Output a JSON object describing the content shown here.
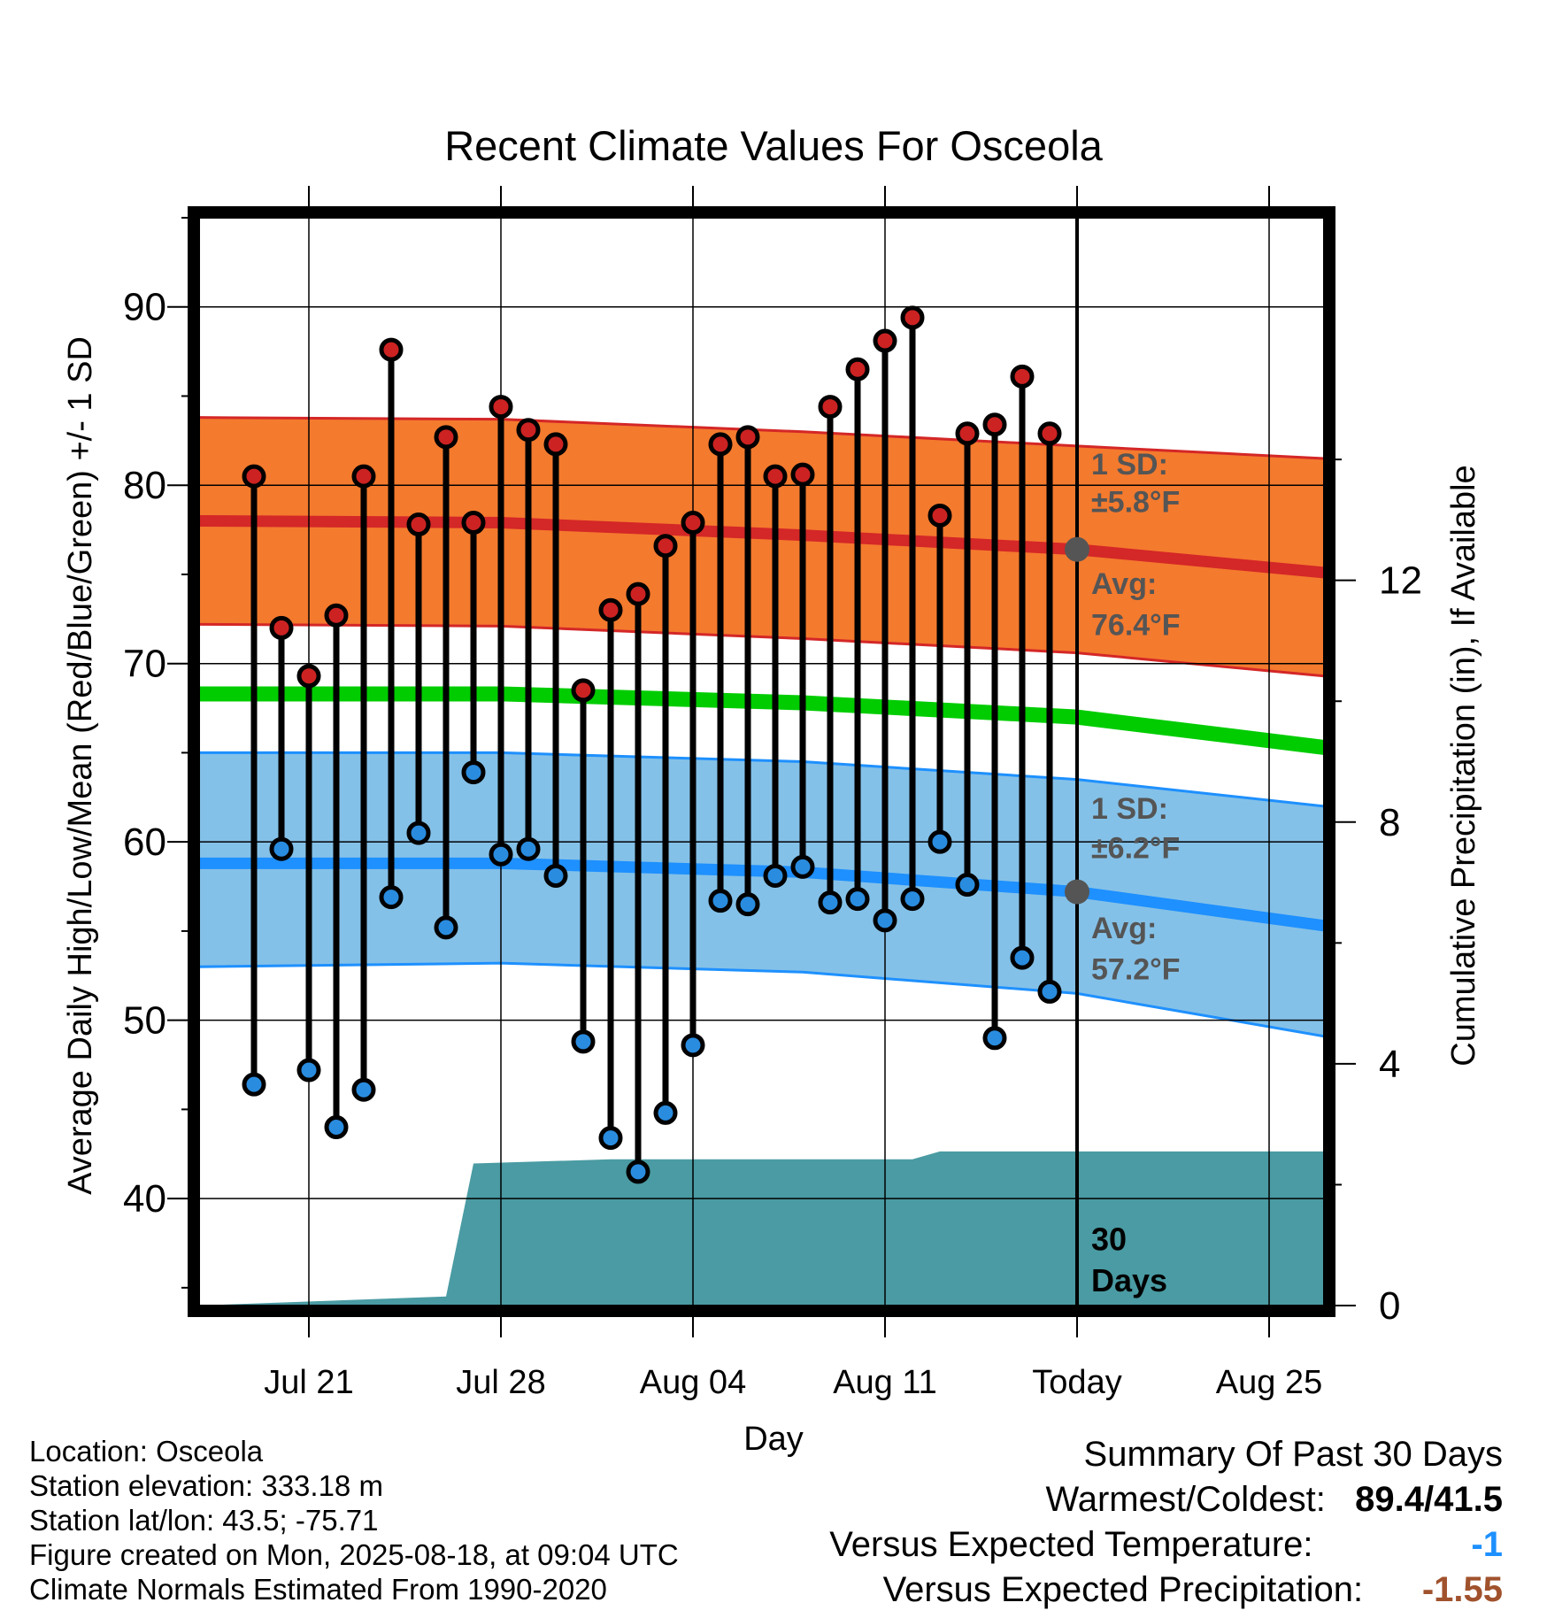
{
  "chart_data": {
    "type": "line",
    "title": "Recent Climate Values For Osceola",
    "xlabel": "Day",
    "ylabel": "Average Daily High/Low/Mean (Red/Blue/Green) +/- 1 SD",
    "y2label": "Cumulative Precipitation (in), If Available",
    "ylim": [
      34,
      95
    ],
    "y2lim": [
      0,
      18
    ],
    "xlim": [
      "2025-07-17",
      "2025-08-27"
    ],
    "yticks": [
      40,
      50,
      60,
      70,
      80,
      90
    ],
    "y2ticks": [
      0,
      4,
      8,
      12
    ],
    "x_tick_dates": [
      "2025-07-21",
      "2025-07-28",
      "2025-08-04",
      "2025-08-11",
      "2025-08-18",
      "2025-08-25"
    ],
    "x_tick_labels": [
      "Jul 21",
      "Jul 28",
      "Aug 04",
      "Aug 11",
      "Today",
      "Aug 25"
    ],
    "today": "2025-08-18",
    "grid": true,
    "dates": [
      "2025-07-19",
      "2025-07-20",
      "2025-07-21",
      "2025-07-22",
      "2025-07-23",
      "2025-07-24",
      "2025-07-25",
      "2025-07-26",
      "2025-07-27",
      "2025-07-28",
      "2025-07-29",
      "2025-07-30",
      "2025-07-31",
      "2025-08-01",
      "2025-08-02",
      "2025-08-03",
      "2025-08-04",
      "2025-08-05",
      "2025-08-06",
      "2025-08-07",
      "2025-08-08",
      "2025-08-09",
      "2025-08-10",
      "2025-08-11",
      "2025-08-12",
      "2025-08-13",
      "2025-08-14",
      "2025-08-15",
      "2025-08-16",
      "2025-08-17"
    ],
    "daily_high": [
      80.5,
      72.0,
      69.3,
      72.7,
      80.5,
      87.6,
      77.8,
      82.7,
      77.9,
      84.4,
      83.1,
      82.3,
      68.5,
      73.0,
      73.9,
      76.6,
      77.9,
      82.3,
      82.7,
      80.5,
      80.6,
      84.4,
      86.5,
      88.1,
      89.4,
      78.3,
      82.9,
      83.4,
      86.1,
      82.9
    ],
    "daily_low": [
      46.4,
      59.6,
      47.2,
      44.0,
      46.1,
      56.9,
      60.5,
      55.2,
      63.9,
      59.3,
      59.6,
      58.1,
      48.8,
      43.4,
      41.5,
      44.8,
      48.6,
      56.7,
      56.5,
      58.1,
      58.6,
      56.6,
      56.8,
      55.6,
      56.8,
      60.0,
      57.6,
      49.0,
      53.5,
      51.6
    ],
    "normal_dates": [
      "2025-07-17",
      "2025-07-28",
      "2025-08-08",
      "2025-08-18",
      "2025-08-27"
    ],
    "normal_high": [
      78.0,
      77.9,
      77.2,
      76.4,
      75.1
    ],
    "normal_high_sd_band": [
      [
        72.2,
        83.8
      ],
      [
        72.1,
        83.7
      ],
      [
        71.4,
        83.0
      ],
      [
        70.6,
        82.2
      ],
      [
        69.3,
        81.5
      ]
    ],
    "normal_mean": [
      68.3,
      68.3,
      67.8,
      67.0,
      65.3
    ],
    "normal_low": [
      58.8,
      58.8,
      58.3,
      57.2,
      55.3
    ],
    "normal_low_sd_band": [
      [
        53.0,
        65.0
      ],
      [
        53.2,
        65.0
      ],
      [
        52.7,
        64.5
      ],
      [
        51.5,
        63.5
      ],
      [
        49.1,
        62.0
      ]
    ],
    "precip_cumulative": {
      "dates": [
        "2025-07-17",
        "2025-07-26",
        "2025-07-27",
        "2025-08-01",
        "2025-08-12",
        "2025-08-13",
        "2025-08-27"
      ],
      "values": [
        0.0,
        0.15,
        2.35,
        2.42,
        2.42,
        2.55,
        2.55
      ]
    },
    "annotations": {
      "high_sd": "±5.8°F",
      "high_avg": "76.4°F",
      "low_sd": "±6.2°F",
      "low_avg": "57.2°F",
      "sd_label": "1 SD:",
      "avg_label": "Avg:",
      "days_count": "30",
      "days_word": "Days"
    }
  },
  "info": {
    "location": "Location: Osceola",
    "elevation": "Station elevation: 333.18 m",
    "latlon": "Station lat/lon: 43.5; -75.71",
    "created": "Figure created on Mon, 2025-08-18, at 09:04 UTC",
    "normals": "Climate Normals Estimated From 1990-2020"
  },
  "summary": {
    "title": "Summary Of Past 30 Days",
    "warm_cold_label": "Warmest/Coldest:",
    "warm_cold_value": "89.4/41.5",
    "temp_label": "Versus Expected Temperature:",
    "temp_value": "-1",
    "prcp_label": "Versus Expected Precipitation:",
    "prcp_value": "-1.55"
  },
  "colors": {
    "high_band": "#f47a2e",
    "high_line": "#d42727",
    "low_band": "#84c1e8",
    "low_line": "#1e90ff",
    "mean_line": "#00cc00",
    "precip": "#4a9ba3",
    "high_dot": "#cc2222",
    "low_dot": "#2a8cdf",
    "annotation": "#555555"
  }
}
